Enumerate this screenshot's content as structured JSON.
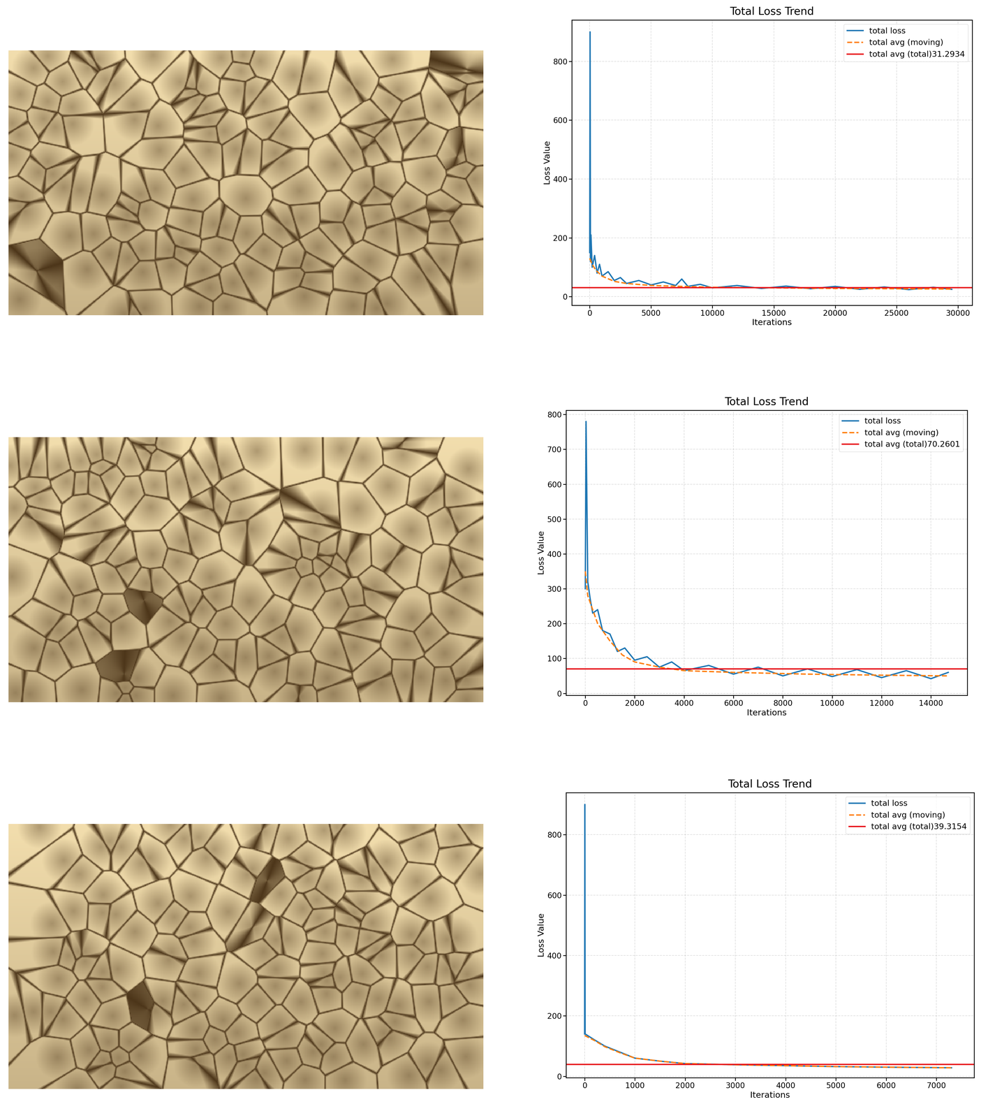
{
  "chart_data": [
    {
      "type": "line",
      "title": "Total Loss Trend",
      "x_label": "Iterations",
      "y_label": "Loss Value",
      "xlim": [
        -1450,
        31160
      ],
      "xticks": [
        0,
        5000,
        10000,
        15000,
        20000,
        25000,
        30000
      ],
      "ylim": [
        -29,
        940
      ],
      "yticks": [
        0,
        200,
        400,
        600,
        800
      ],
      "grid": true,
      "legend": "upper right",
      "series": [
        {
          "name": "total loss",
          "color": "#1f77b4",
          "line_style": "solid",
          "x": [
            0,
            30,
            60,
            100,
            200,
            400,
            600,
            800,
            1000,
            1500,
            2000,
            2500,
            3000,
            4000,
            5000,
            6000,
            7000,
            7500,
            8000,
            9000,
            10000,
            12000,
            14000,
            16000,
            18000,
            20000,
            22000,
            24000,
            26000,
            28000,
            29500
          ],
          "values": [
            150,
            900,
            120,
            210,
            100,
            140,
            80,
            110,
            70,
            85,
            55,
            65,
            45,
            55,
            40,
            50,
            38,
            60,
            35,
            42,
            30,
            38,
            28,
            36,
            27,
            35,
            25,
            33,
            24,
            32,
            25
          ]
        },
        {
          "name": "total avg (moving)",
          "color": "#ff7f0e",
          "line_style": "dashed",
          "x": [
            0,
            200,
            500,
            1000,
            2000,
            3000,
            5000,
            10000,
            15000,
            20000,
            25000,
            29500
          ],
          "values": [
            130,
            110,
            90,
            70,
            52,
            45,
            38,
            32,
            30,
            28,
            27,
            26
          ]
        },
        {
          "name": "total avg (total)31.2934",
          "color": "#e8141c",
          "line_style": "solid",
          "type": "hline",
          "value": 31.2934
        }
      ]
    },
    {
      "type": "line",
      "title": "Total Loss Trend",
      "x_label": "Iterations",
      "y_label": "Loss Value",
      "xlim": [
        -780,
        15470
      ],
      "xticks": [
        0,
        2000,
        4000,
        6000,
        8000,
        10000,
        12000,
        14000
      ],
      "ylim": [
        -6,
        812
      ],
      "yticks": [
        0,
        100,
        200,
        300,
        400,
        500,
        600,
        700,
        800
      ],
      "grid": true,
      "legend": "upper right",
      "series": [
        {
          "name": "total loss",
          "color": "#1f77b4",
          "line_style": "solid",
          "x": [
            0,
            30,
            100,
            200,
            300,
            500,
            700,
            1000,
            1300,
            1600,
            2000,
            2500,
            3000,
            3500,
            4000,
            5000,
            6000,
            7000,
            8000,
            9000,
            10000,
            11000,
            12000,
            13000,
            14000,
            14700
          ],
          "values": [
            300,
            780,
            320,
            270,
            230,
            240,
            180,
            170,
            120,
            130,
            95,
            105,
            75,
            90,
            65,
            80,
            55,
            75,
            50,
            70,
            48,
            68,
            45,
            65,
            42,
            60
          ]
        },
        {
          "name": "total avg (moving)",
          "color": "#ff7f0e",
          "line_style": "dashed",
          "x": [
            0,
            100,
            500,
            1000,
            1500,
            2000,
            3000,
            4000,
            6000,
            9000,
            12000,
            14700
          ],
          "values": [
            350,
            280,
            200,
            150,
            110,
            90,
            75,
            65,
            60,
            55,
            52,
            50
          ]
        },
        {
          "name": "total avg (total)70.2601",
          "color": "#e8141c",
          "line_style": "solid",
          "type": "hline",
          "value": 70.2601
        }
      ]
    },
    {
      "type": "line",
      "title": "Total Loss Trend",
      "x_label": "Iterations",
      "y_label": "Loss Value",
      "xlim": [
        -370,
        7750
      ],
      "xticks": [
        0,
        1000,
        2000,
        3000,
        4000,
        5000,
        6000,
        7000
      ],
      "ylim": [
        -5,
        939
      ],
      "yticks": [
        0,
        200,
        400,
        600,
        800
      ],
      "grid": true,
      "legend": "upper right",
      "series": [
        {
          "name": "total loss",
          "color": "#1f77b4",
          "line_style": "solid",
          "x": [
            0,
            5,
            10,
            200,
            400,
            700,
            1000,
            1500,
            2000,
            3000,
            4000,
            5000,
            6000,
            7300
          ],
          "values": [
            140,
            900,
            140,
            120,
            100,
            80,
            60,
            50,
            42,
            38,
            35,
            32,
            30,
            28
          ]
        },
        {
          "name": "total avg (moving)",
          "color": "#ff7f0e",
          "line_style": "dashed",
          "x": [
            0,
            200,
            400,
            700,
            1000,
            1500,
            2000,
            3000,
            4000,
            5000,
            6000,
            7300
          ],
          "values": [
            135,
            118,
            98,
            78,
            60,
            50,
            42,
            38,
            35,
            32,
            30,
            28
          ]
        },
        {
          "name": "total avg (total)39.3154",
          "color": "#e8141c",
          "line_style": "solid",
          "type": "hline",
          "value": 39.3154
        }
      ]
    }
  ]
}
